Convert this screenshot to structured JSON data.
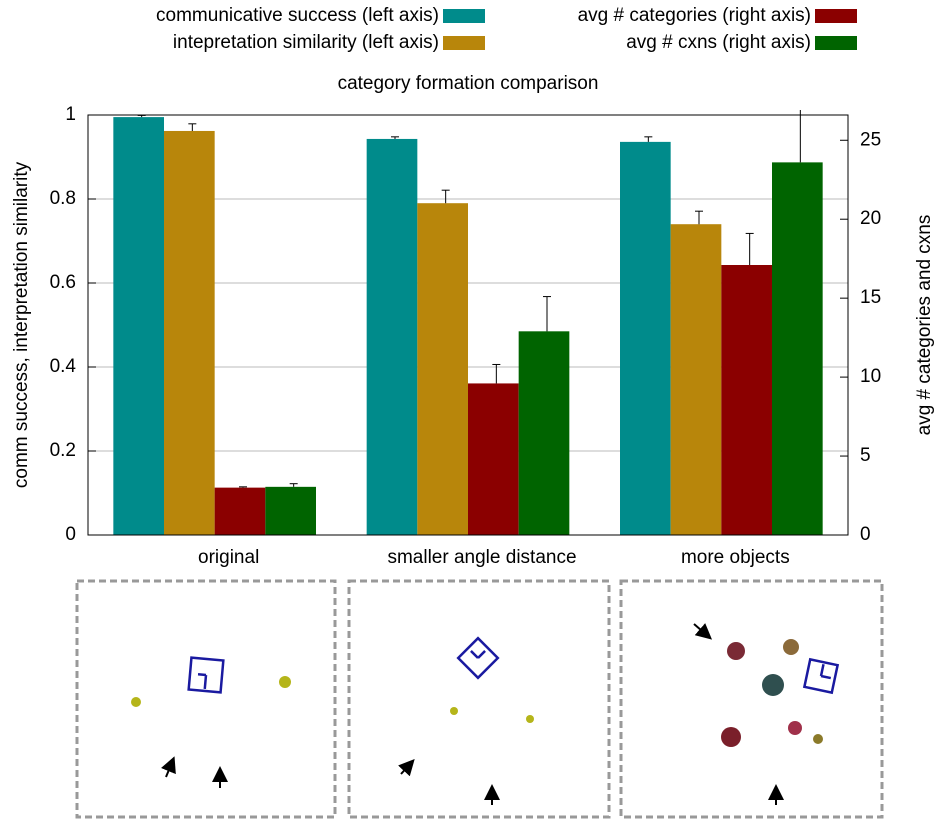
{
  "chart_data": {
    "type": "bar",
    "title": "category formation comparison",
    "categories": [
      "original",
      "smaller angle distance",
      "more objects"
    ],
    "ylabel": "comm success, interpretation similarity",
    "y2label": "avg # categories and cxns",
    "ylim": [
      0,
      1
    ],
    "yticks": [
      0,
      0.2,
      0.4,
      0.6,
      0.8,
      1
    ],
    "y2lim": [
      0,
      26.6
    ],
    "y2ticks": [
      0,
      5,
      10,
      15,
      20,
      25
    ],
    "grid": true,
    "series": [
      {
        "name": "communicative success (left axis)",
        "color": "#008b8b",
        "values": [
          0.995,
          0.943,
          0.936
        ],
        "errors": [
          0.004,
          0.005,
          0.012
        ]
      },
      {
        "name": "intepretation similarity (left axis)",
        "color": "#b8860b",
        "values": [
          0.962,
          0.79,
          0.74
        ],
        "errors": [
          0.017,
          0.031,
          0.031
        ]
      },
      {
        "name": "avg # categories (right axis)",
        "color": "#8b0000",
        "axis": "y2",
        "values": [
          3.0,
          9.6,
          17.1
        ],
        "errors": [
          0.05,
          1.2,
          2.0
        ]
      },
      {
        "name": "avg # cxns (right axis)",
        "color": "#006400",
        "axis": "y2",
        "values": [
          3.05,
          12.9,
          23.6
        ],
        "errors": [
          0.2,
          2.2,
          3.5
        ]
      }
    ]
  }
}
